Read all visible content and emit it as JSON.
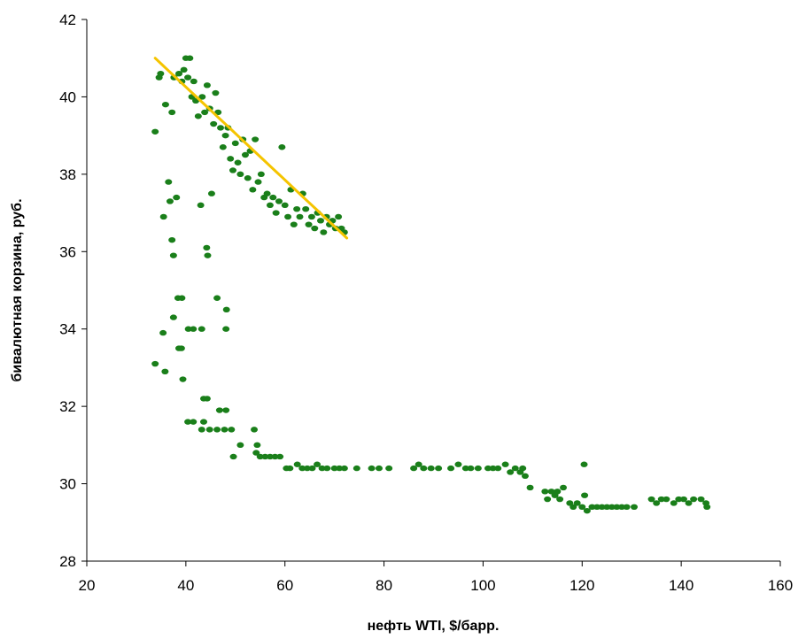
{
  "chart_data": {
    "type": "scatter",
    "title": "",
    "xlabel": "нефть WTI, $/барр.",
    "ylabel": "бивалютная корзина, руб.",
    "xlim": [
      20,
      160
    ],
    "ylim": [
      28,
      42
    ],
    "xticks": [
      "20",
      "40",
      "60",
      "80",
      "100",
      "120",
      "140",
      "160"
    ],
    "yticks": [
      "28",
      "30",
      "32",
      "34",
      "36",
      "38",
      "40",
      "42"
    ],
    "grid": false,
    "legend": "none",
    "colors": {
      "points": "#1a7f1a",
      "trend": "#f5c400"
    },
    "trendline": {
      "x": [
        33.8,
        72.5
      ],
      "y": [
        41.0,
        36.35
      ]
    },
    "series": [
      {
        "points": [
          [
            33.8,
            39.1
          ],
          [
            34.6,
            40.5
          ],
          [
            34.9,
            40.6
          ],
          [
            35.5,
            36.9
          ],
          [
            35.9,
            39.8
          ],
          [
            36.5,
            37.8
          ],
          [
            36.8,
            37.3
          ],
          [
            37.2,
            39.6
          ],
          [
            37.6,
            40.5
          ],
          [
            38.1,
            37.4
          ],
          [
            38.6,
            40.6
          ],
          [
            39.2,
            40.4
          ],
          [
            39.6,
            40.7
          ],
          [
            40.0,
            41.0
          ],
          [
            40.4,
            40.5
          ],
          [
            40.8,
            41.0
          ],
          [
            41.2,
            40.0
          ],
          [
            41.6,
            40.4
          ],
          [
            42.0,
            39.9
          ],
          [
            42.5,
            39.5
          ],
          [
            43.0,
            37.2
          ],
          [
            43.3,
            40.0
          ],
          [
            43.8,
            39.6
          ],
          [
            44.3,
            40.3
          ],
          [
            44.8,
            39.7
          ],
          [
            45.2,
            37.5
          ],
          [
            45.6,
            39.3
          ],
          [
            46.0,
            40.1
          ],
          [
            46.5,
            39.6
          ],
          [
            47.0,
            39.2
          ],
          [
            47.5,
            38.7
          ],
          [
            48.0,
            39.0
          ],
          [
            48.5,
            39.2
          ],
          [
            49.0,
            38.4
          ],
          [
            49.5,
            38.1
          ],
          [
            50.0,
            38.8
          ],
          [
            50.5,
            38.3
          ],
          [
            51.0,
            38.0
          ],
          [
            51.5,
            38.9
          ],
          [
            52.0,
            38.5
          ],
          [
            52.5,
            37.9
          ],
          [
            53.0,
            38.6
          ],
          [
            53.5,
            37.6
          ],
          [
            54.0,
            38.9
          ],
          [
            54.6,
            37.8
          ],
          [
            55.2,
            38.0
          ],
          [
            55.8,
            37.4
          ],
          [
            56.4,
            37.5
          ],
          [
            57.0,
            37.2
          ],
          [
            57.6,
            37.4
          ],
          [
            58.2,
            37.0
          ],
          [
            58.8,
            37.3
          ],
          [
            59.4,
            38.7
          ],
          [
            60.0,
            37.2
          ],
          [
            60.6,
            36.9
          ],
          [
            61.2,
            37.6
          ],
          [
            61.8,
            36.7
          ],
          [
            62.4,
            37.1
          ],
          [
            63.0,
            36.9
          ],
          [
            63.6,
            37.5
          ],
          [
            64.2,
            37.1
          ],
          [
            64.8,
            36.7
          ],
          [
            65.4,
            36.9
          ],
          [
            66.0,
            36.6
          ],
          [
            66.6,
            37.0
          ],
          [
            67.2,
            36.8
          ],
          [
            67.8,
            36.5
          ],
          [
            68.4,
            36.9
          ],
          [
            69.0,
            36.7
          ],
          [
            69.6,
            36.8
          ],
          [
            70.2,
            36.6
          ],
          [
            70.8,
            36.9
          ],
          [
            71.4,
            36.6
          ],
          [
            72.0,
            36.5
          ],
          [
            37.5,
            35.9
          ],
          [
            37.2,
            36.3
          ],
          [
            44.2,
            36.1
          ],
          [
            44.4,
            35.9
          ],
          [
            38.4,
            34.8
          ],
          [
            39.2,
            34.8
          ],
          [
            40.5,
            34.0
          ],
          [
            41.5,
            34.0
          ],
          [
            43.2,
            34.0
          ],
          [
            46.3,
            34.8
          ],
          [
            48.2,
            34.5
          ],
          [
            48.1,
            34.0
          ],
          [
            35.4,
            33.9
          ],
          [
            37.5,
            34.3
          ],
          [
            38.6,
            33.5
          ],
          [
            39.1,
            33.5
          ],
          [
            33.8,
            33.1
          ],
          [
            35.8,
            32.9
          ],
          [
            39.4,
            32.7
          ],
          [
            43.6,
            32.2
          ],
          [
            44.3,
            32.2
          ],
          [
            46.8,
            31.9
          ],
          [
            48.1,
            31.9
          ],
          [
            40.4,
            31.6
          ],
          [
            41.5,
            31.6
          ],
          [
            43.6,
            31.6
          ],
          [
            43.2,
            31.4
          ],
          [
            44.8,
            31.4
          ],
          [
            46.3,
            31.4
          ],
          [
            47.8,
            31.4
          ],
          [
            49.2,
            31.4
          ],
          [
            53.8,
            31.4
          ],
          [
            51.0,
            31.0
          ],
          [
            54.4,
            31.0
          ],
          [
            49.6,
            30.7
          ],
          [
            54.2,
            30.8
          ],
          [
            55.0,
            30.7
          ],
          [
            56.0,
            30.7
          ],
          [
            57.0,
            30.7
          ],
          [
            58.0,
            30.7
          ],
          [
            59.0,
            30.7
          ],
          [
            60.3,
            30.4
          ],
          [
            61.0,
            30.4
          ],
          [
            62.5,
            30.5
          ],
          [
            63.5,
            30.4
          ],
          [
            64.5,
            30.4
          ],
          [
            65.5,
            30.4
          ],
          [
            66.5,
            30.5
          ],
          [
            67.5,
            30.4
          ],
          [
            68.5,
            30.4
          ],
          [
            70.0,
            30.4
          ],
          [
            71.0,
            30.4
          ],
          [
            72.0,
            30.4
          ],
          [
            74.5,
            30.4
          ],
          [
            77.5,
            30.4
          ],
          [
            79.0,
            30.4
          ],
          [
            81.0,
            30.4
          ],
          [
            86.0,
            30.4
          ],
          [
            87.0,
            30.5
          ],
          [
            88.0,
            30.4
          ],
          [
            89.5,
            30.4
          ],
          [
            91.0,
            30.4
          ],
          [
            93.5,
            30.4
          ],
          [
            95.0,
            30.5
          ],
          [
            96.5,
            30.4
          ],
          [
            97.5,
            30.4
          ],
          [
            99.0,
            30.4
          ],
          [
            101.0,
            30.4
          ],
          [
            102.0,
            30.4
          ],
          [
            103.0,
            30.4
          ],
          [
            104.5,
            30.5
          ],
          [
            105.5,
            30.3
          ],
          [
            106.5,
            30.4
          ],
          [
            107.5,
            30.3
          ],
          [
            108.0,
            30.4
          ],
          [
            108.5,
            30.2
          ],
          [
            109.5,
            29.9
          ],
          [
            112.5,
            29.8
          ],
          [
            113.0,
            29.6
          ],
          [
            113.8,
            29.8
          ],
          [
            114.5,
            29.7
          ],
          [
            115.0,
            29.8
          ],
          [
            115.5,
            29.6
          ],
          [
            116.2,
            29.9
          ],
          [
            117.5,
            29.5
          ],
          [
            118.2,
            29.4
          ],
          [
            119.0,
            29.5
          ],
          [
            120.0,
            29.4
          ],
          [
            120.5,
            29.7
          ],
          [
            121.0,
            29.3
          ],
          [
            122.0,
            29.4
          ],
          [
            123.0,
            29.4
          ],
          [
            124.0,
            29.4
          ],
          [
            125.0,
            29.4
          ],
          [
            126.0,
            29.4
          ],
          [
            127.0,
            29.4
          ],
          [
            128.0,
            29.4
          ],
          [
            129.0,
            29.4
          ],
          [
            130.5,
            29.4
          ],
          [
            120.4,
            30.5
          ],
          [
            134.0,
            29.6
          ],
          [
            135.0,
            29.5
          ],
          [
            136.0,
            29.6
          ],
          [
            137.0,
            29.6
          ],
          [
            138.5,
            29.5
          ],
          [
            139.5,
            29.6
          ],
          [
            140.5,
            29.6
          ],
          [
            141.5,
            29.5
          ],
          [
            142.5,
            29.6
          ],
          [
            144.0,
            29.6
          ],
          [
            145.0,
            29.5
          ],
          [
            145.2,
            29.4
          ]
        ]
      }
    ]
  }
}
